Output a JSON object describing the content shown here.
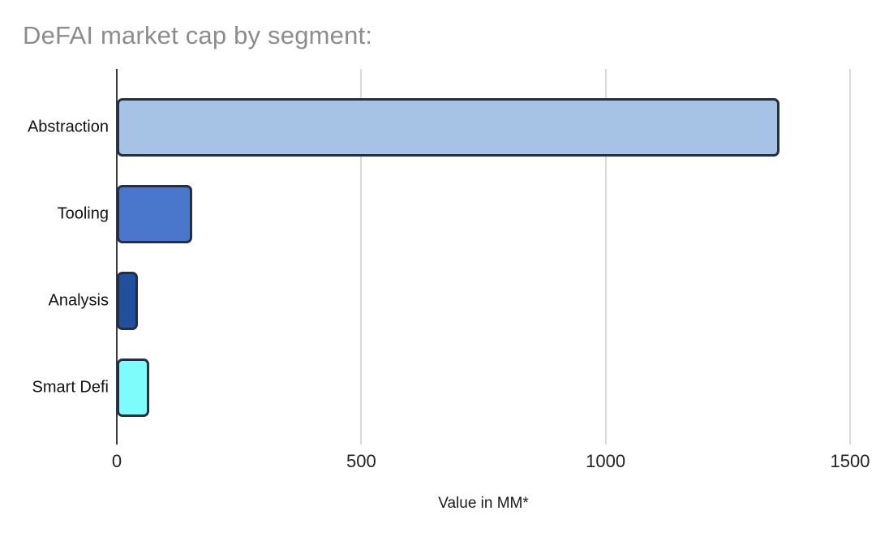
{
  "chart_data": {
    "type": "bar",
    "orientation": "horizontal",
    "title": "DeFAI market cap by segment:",
    "categories": [
      "Abstraction",
      "Tooling",
      "Analysis",
      "Smart Defi"
    ],
    "values": [
      1350,
      150,
      38,
      62
    ],
    "xlabel": "Value in MM*",
    "xlim": [
      0,
      1500
    ],
    "xticks": [
      0,
      500,
      1000,
      1500
    ],
    "xtick_labels": [
      "0",
      "500",
      "1000",
      "1500"
    ],
    "grid": "vertical-gridlines-on",
    "legend": "none",
    "bar_colors": [
      "#a6c3e5",
      "#4a76cc",
      "#21509e",
      "#7efbfb"
    ],
    "bar_border_color": "#222f45",
    "axis_line_color": "#3c3c3c",
    "gridline_color": "#d9d9d9",
    "title_color": "#8c8c8c"
  }
}
